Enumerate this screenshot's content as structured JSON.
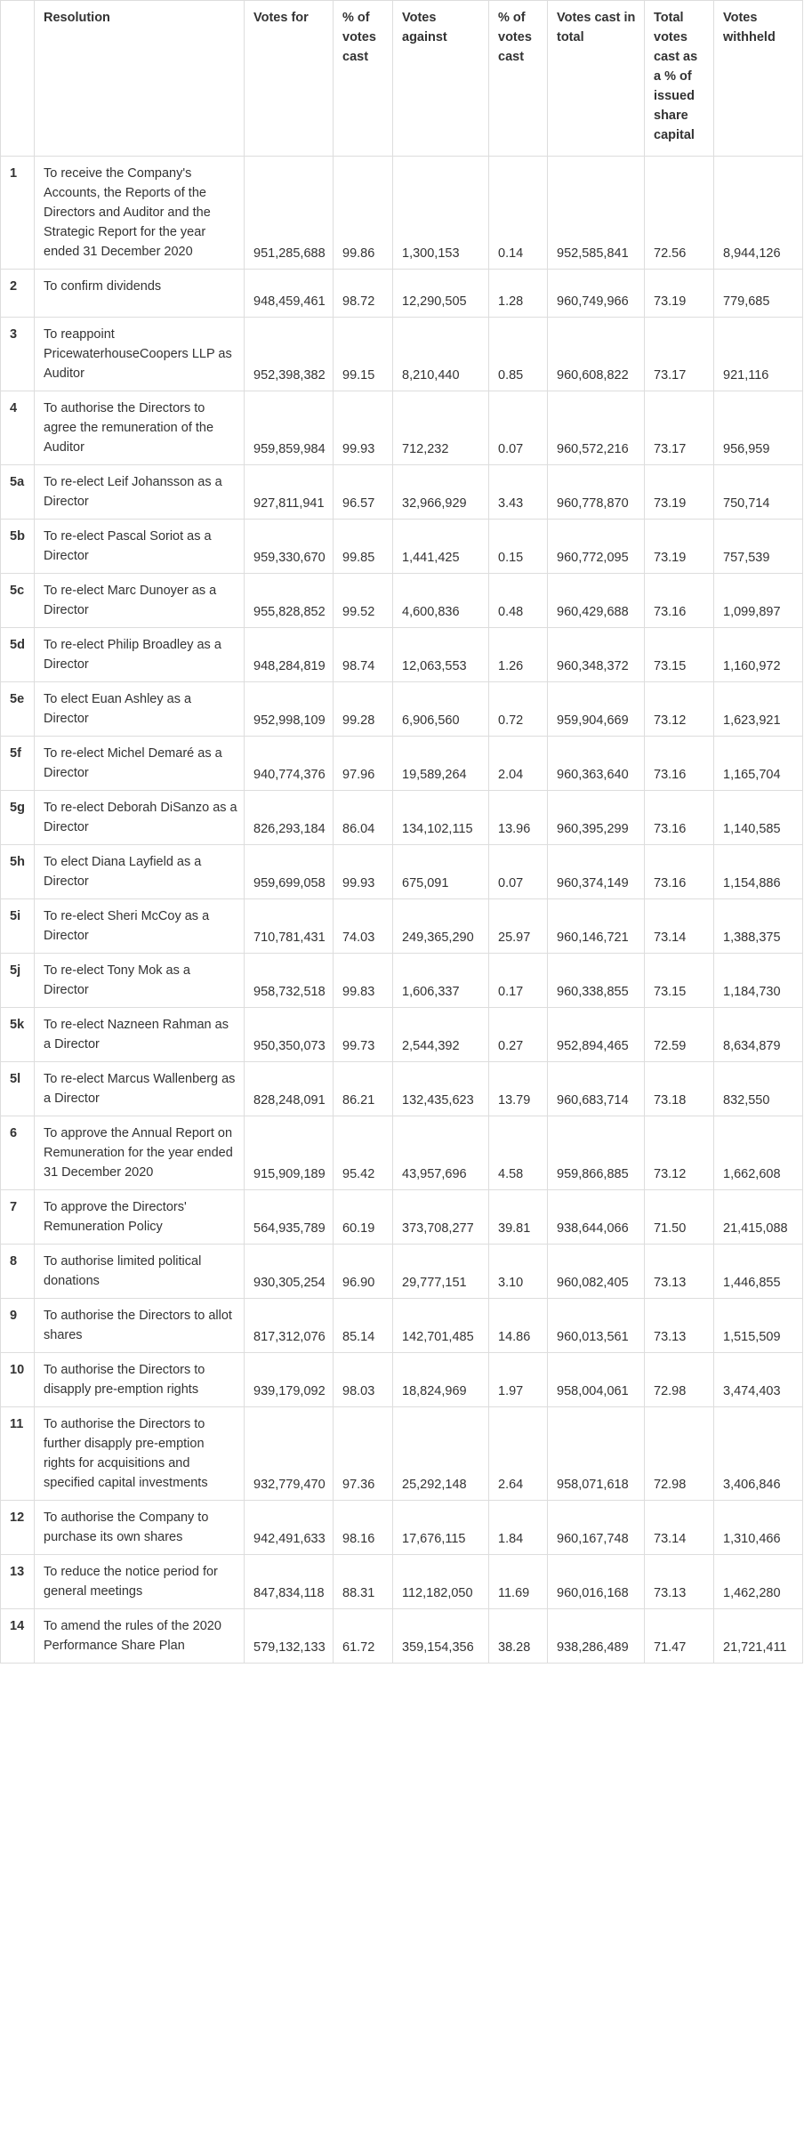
{
  "columns": [
    "",
    "Resolution",
    "Votes for",
    "% of votes cast",
    "Votes against",
    "% of votes cast",
    "Votes cast in total",
    "Total votes cast as a % of issued share capital",
    "Votes withheld"
  ],
  "rows": [
    {
      "no": "1",
      "resolution": "To receive the Company's Accounts, the Reports of the Directors and Auditor and the Strategic Report for the year ended 31 December 2020",
      "votes_for": "951,285,688",
      "pct_for": "99.86",
      "votes_against": "1,300,153",
      "pct_against": "0.14",
      "votes_total": "952,585,841",
      "pct_capital": "72.56",
      "withheld": "8,944,126"
    },
    {
      "no": "2",
      "resolution": "To confirm dividends",
      "votes_for": "948,459,461",
      "pct_for": "98.72",
      "votes_against": "12,290,505",
      "pct_against": "1.28",
      "votes_total": "960,749,966",
      "pct_capital": "73.19",
      "withheld": "779,685"
    },
    {
      "no": "3",
      "resolution": "To reappoint PricewaterhouseCoopers LLP as Auditor",
      "votes_for": "952,398,382",
      "pct_for": "99.15",
      "votes_against": "8,210,440",
      "pct_against": "0.85",
      "votes_total": "960,608,822",
      "pct_capital": "73.17",
      "withheld": "921,116"
    },
    {
      "no": "4",
      "resolution": "To authorise the Directors to agree the remuneration of the Auditor",
      "votes_for": "959,859,984",
      "pct_for": "99.93",
      "votes_against": "712,232",
      "pct_against": "0.07",
      "votes_total": "960,572,216",
      "pct_capital": "73.17",
      "withheld": "956,959"
    },
    {
      "no": "5a",
      "resolution": "To re-elect Leif Johansson as a Director",
      "votes_for": "927,811,941",
      "pct_for": "96.57",
      "votes_against": "32,966,929",
      "pct_against": "3.43",
      "votes_total": "960,778,870",
      "pct_capital": "73.19",
      "withheld": "750,714"
    },
    {
      "no": "5b",
      "resolution": "To re-elect Pascal Soriot as a Director",
      "votes_for": "959,330,670",
      "pct_for": "99.85",
      "votes_against": "1,441,425",
      "pct_against": "0.15",
      "votes_total": "960,772,095",
      "pct_capital": "73.19",
      "withheld": "757,539"
    },
    {
      "no": "5c",
      "resolution": "To re-elect Marc Dunoyer as a Director",
      "votes_for": "955,828,852",
      "pct_for": "99.52",
      "votes_against": "4,600,836",
      "pct_against": "0.48",
      "votes_total": "960,429,688",
      "pct_capital": "73.16",
      "withheld": "1,099,897"
    },
    {
      "no": "5d",
      "resolution": "To re-elect Philip Broadley as a Director",
      "votes_for": "948,284,819",
      "pct_for": "98.74",
      "votes_against": "12,063,553",
      "pct_against": "1.26",
      "votes_total": "960,348,372",
      "pct_capital": "73.15",
      "withheld": "1,160,972"
    },
    {
      "no": "5e",
      "resolution": "To elect Euan Ashley as a Director",
      "votes_for": "952,998,109",
      "pct_for": "99.28",
      "votes_against": "6,906,560",
      "pct_against": "0.72",
      "votes_total": "959,904,669",
      "pct_capital": "73.12",
      "withheld": "1,623,921"
    },
    {
      "no": "5f",
      "resolution": "To re-elect Michel Demaré as a Director",
      "votes_for": "940,774,376",
      "pct_for": "97.96",
      "votes_against": "19,589,264",
      "pct_against": "2.04",
      "votes_total": "960,363,640",
      "pct_capital": "73.16",
      "withheld": "1,165,704"
    },
    {
      "no": "5g",
      "resolution": "To re-elect Deborah DiSanzo as a Director",
      "votes_for": "826,293,184",
      "pct_for": "86.04",
      "votes_against": "134,102,115",
      "pct_against": "13.96",
      "votes_total": "960,395,299",
      "pct_capital": "73.16",
      "withheld": "1,140,585"
    },
    {
      "no": "5h",
      "resolution": "To elect Diana Layfield as a Director",
      "votes_for": "959,699,058",
      "pct_for": "99.93",
      "votes_against": "675,091",
      "pct_against": "0.07",
      "votes_total": "960,374,149",
      "pct_capital": "73.16",
      "withheld": "1,154,886"
    },
    {
      "no": "5i",
      "resolution": "To re-elect Sheri McCoy as a Director",
      "votes_for": "710,781,431",
      "pct_for": "74.03",
      "votes_against": "249,365,290",
      "pct_against": "25.97",
      "votes_total": "960,146,721",
      "pct_capital": "73.14",
      "withheld": "1,388,375"
    },
    {
      "no": "5j",
      "resolution": "To re-elect Tony Mok as a Director",
      "votes_for": "958,732,518",
      "pct_for": "99.83",
      "votes_against": "1,606,337",
      "pct_against": "0.17",
      "votes_total": "960,338,855",
      "pct_capital": "73.15",
      "withheld": "1,184,730"
    },
    {
      "no": "5k",
      "resolution": "To re-elect Nazneen Rahman as a Director",
      "votes_for": "950,350,073",
      "pct_for": "99.73",
      "votes_against": "2,544,392",
      "pct_against": "0.27",
      "votes_total": "952,894,465",
      "pct_capital": "72.59",
      "withheld": "8,634,879"
    },
    {
      "no": "5l",
      "resolution": "To re-elect Marcus Wallenberg as a Director",
      "votes_for": "828,248,091",
      "pct_for": "86.21",
      "votes_against": "132,435,623",
      "pct_against": "13.79",
      "votes_total": "960,683,714",
      "pct_capital": "73.18",
      "withheld": "832,550"
    },
    {
      "no": "6",
      "resolution": "To approve the Annual Report on Remuneration for the year ended 31 December 2020",
      "votes_for": "915,909,189",
      "pct_for": "95.42",
      "votes_against": "43,957,696",
      "pct_against": "4.58",
      "votes_total": "959,866,885",
      "pct_capital": "73.12",
      "withheld": "1,662,608"
    },
    {
      "no": "7",
      "resolution": "To approve the Directors' Remuneration Policy",
      "votes_for": "564,935,789",
      "pct_for": "60.19",
      "votes_against": "373,708,277",
      "pct_against": "39.81",
      "votes_total": "938,644,066",
      "pct_capital": "71.50",
      "withheld": "21,415,088"
    },
    {
      "no": "8",
      "resolution": "To authorise limited political donations",
      "votes_for": "930,305,254",
      "pct_for": "96.90",
      "votes_against": "29,777,151",
      "pct_against": "3.10",
      "votes_total": "960,082,405",
      "pct_capital": "73.13",
      "withheld": "1,446,855"
    },
    {
      "no": "9",
      "resolution": "To authorise the Directors to allot shares",
      "votes_for": "817,312,076",
      "pct_for": "85.14",
      "votes_against": "142,701,485",
      "pct_against": "14.86",
      "votes_total": "960,013,561",
      "pct_capital": "73.13",
      "withheld": "1,515,509"
    },
    {
      "no": "10",
      "resolution": "To authorise the Directors to disapply pre-emption rights",
      "votes_for": "939,179,092",
      "pct_for": "98.03",
      "votes_against": "18,824,969",
      "pct_against": "1.97",
      "votes_total": "958,004,061",
      "pct_capital": "72.98",
      "withheld": "3,474,403"
    },
    {
      "no": "11",
      "resolution": "To authorise the Directors to further disapply pre-emption rights for acquisitions and specified capital investments",
      "votes_for": "932,779,470",
      "pct_for": "97.36",
      "votes_against": "25,292,148",
      "pct_against": "2.64",
      "votes_total": "958,071,618",
      "pct_capital": "72.98",
      "withheld": "3,406,846"
    },
    {
      "no": "12",
      "resolution": "To authorise the Company to purchase its own shares",
      "votes_for": "942,491,633",
      "pct_for": "98.16",
      "votes_against": "17,676,115",
      "pct_against": "1.84",
      "votes_total": "960,167,748",
      "pct_capital": "73.14",
      "withheld": "1,310,466"
    },
    {
      "no": "13",
      "resolution": "To reduce the notice period for general meetings",
      "votes_for": "847,834,118",
      "pct_for": "88.31",
      "votes_against": "112,182,050",
      "pct_against": "11.69",
      "votes_total": "960,016,168",
      "pct_capital": "73.13",
      "withheld": "1,462,280"
    },
    {
      "no": "14",
      "resolution": "To amend the rules of the 2020 Performance Share Plan",
      "votes_for": "579,132,133",
      "pct_for": "61.72",
      "votes_against": "359,154,356",
      "pct_against": "38.28",
      "votes_total": "938,286,489",
      "pct_capital": "71.47",
      "withheld": "21,721,411"
    }
  ]
}
